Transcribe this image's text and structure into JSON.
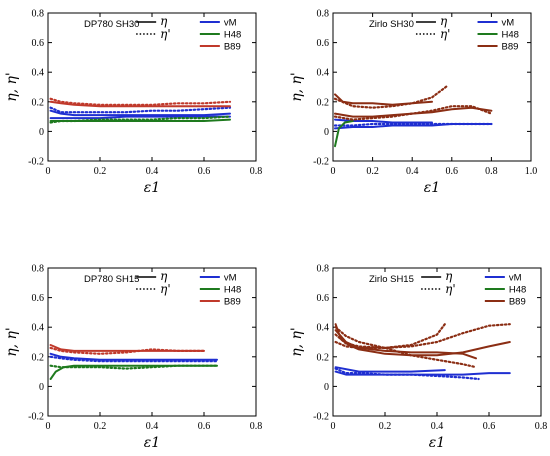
{
  "chart_data": [
    {
      "type": "line",
      "title": "DP780 SH30",
      "xlabel": "ε1",
      "ylabel": "η, η'",
      "xlim": [
        0,
        0.8
      ],
      "ylim": [
        -0.2,
        0.8
      ],
      "xticks": [
        "0",
        "0.2",
        "0.4",
        "0.6",
        "0.8"
      ],
      "yticks": [
        "-0.2",
        "0",
        "0.2",
        "0.4",
        "0.6",
        "0.8"
      ],
      "legend": {
        "eta": "η",
        "eta_prime": "η'",
        "models": [
          "vM",
          "H48",
          "B89"
        ]
      },
      "series": [
        {
          "model": "vM",
          "kind": "η",
          "x": [
            0.01,
            0.05,
            0.1,
            0.2,
            0.3,
            0.4,
            0.5,
            0.6,
            0.7
          ],
          "y": [
            0.14,
            0.12,
            0.11,
            0.11,
            0.11,
            0.11,
            0.11,
            0.11,
            0.12
          ]
        },
        {
          "model": "vM",
          "kind": "η'",
          "x": [
            0.01,
            0.05,
            0.1,
            0.2,
            0.3,
            0.4,
            0.5,
            0.6,
            0.7
          ],
          "y": [
            0.16,
            0.13,
            0.13,
            0.13,
            0.13,
            0.14,
            0.14,
            0.15,
            0.16
          ]
        },
        {
          "model": "vM",
          "kind": "η",
          "x": [
            0.01,
            0.05,
            0.1,
            0.2,
            0.3,
            0.4,
            0.5,
            0.6,
            0.7
          ],
          "y": [
            0.09,
            0.09,
            0.09,
            0.09,
            0.1,
            0.1,
            0.1,
            0.1,
            0.1
          ]
        },
        {
          "model": "H48",
          "kind": "η",
          "x": [
            0.01,
            0.05,
            0.1,
            0.2,
            0.3,
            0.4,
            0.5,
            0.6,
            0.7
          ],
          "y": [
            0.07,
            0.07,
            0.07,
            0.07,
            0.07,
            0.07,
            0.07,
            0.07,
            0.08
          ]
        },
        {
          "model": "H48",
          "kind": "η'",
          "x": [
            0.01,
            0.05,
            0.1,
            0.2,
            0.3,
            0.4,
            0.5,
            0.6,
            0.7
          ],
          "y": [
            0.06,
            0.07,
            0.07,
            0.08,
            0.08,
            0.08,
            0.09,
            0.09,
            0.1
          ]
        },
        {
          "model": "B89",
          "kind": "η",
          "x": [
            0.01,
            0.05,
            0.1,
            0.2,
            0.3,
            0.4,
            0.5,
            0.6,
            0.7
          ],
          "y": [
            0.2,
            0.19,
            0.18,
            0.17,
            0.17,
            0.17,
            0.17,
            0.17,
            0.17
          ]
        },
        {
          "model": "B89",
          "kind": "η'",
          "x": [
            0.01,
            0.05,
            0.1,
            0.2,
            0.3,
            0.4,
            0.5,
            0.6,
            0.7
          ],
          "y": [
            0.22,
            0.2,
            0.19,
            0.18,
            0.18,
            0.18,
            0.19,
            0.19,
            0.2
          ]
        }
      ]
    },
    {
      "type": "line",
      "title": "Zirlo SH30",
      "xlabel": "ε1",
      "ylabel": "η, η'",
      "xlim": [
        0,
        1.0
      ],
      "ylim": [
        -0.2,
        0.8
      ],
      "xticks": [
        "0",
        "0.2",
        "0.4",
        "0.6",
        "0.8",
        "1.0"
      ],
      "yticks": [
        "-0.2",
        "0",
        "0.2",
        "0.4",
        "0.6",
        "0.8"
      ],
      "legend": {
        "eta": "η",
        "eta_prime": "η'",
        "models": [
          "vM",
          "H48",
          "B89"
        ]
      },
      "series": [
        {
          "model": "vM",
          "kind": "η",
          "x": [
            0.01,
            0.1,
            0.2,
            0.3,
            0.4,
            0.5,
            0.6,
            0.7,
            0.8
          ],
          "y": [
            0.02,
            0.03,
            0.03,
            0.04,
            0.04,
            0.04,
            0.05,
            0.05,
            0.05
          ]
        },
        {
          "model": "vM",
          "kind": "η'",
          "x": [
            0.01,
            0.1,
            0.2,
            0.3,
            0.4,
            0.5,
            0.6,
            0.7,
            0.8
          ],
          "y": [
            0.04,
            0.04,
            0.05,
            0.05,
            0.05,
            0.05,
            0.05,
            0.05,
            0.05
          ]
        },
        {
          "model": "vM",
          "kind": "η",
          "x": [
            0.01,
            0.1,
            0.2,
            0.3,
            0.4,
            0.5
          ],
          "y": [
            0.08,
            0.07,
            0.07,
            0.06,
            0.06,
            0.06
          ]
        },
        {
          "model": "H48",
          "kind": "η",
          "x": [
            0.01,
            0.03,
            0.06,
            0.1
          ],
          "y": [
            -0.1,
            0.02,
            0.06,
            0.07
          ]
        },
        {
          "model": "B89",
          "kind": "η",
          "x": [
            0.01,
            0.05,
            0.1,
            0.2,
            0.3,
            0.4,
            0.5
          ],
          "y": [
            0.25,
            0.2,
            0.19,
            0.19,
            0.18,
            0.19,
            0.2
          ]
        },
        {
          "model": "B89",
          "kind": "η'",
          "x": [
            0.01,
            0.1,
            0.2,
            0.3,
            0.4,
            0.5,
            0.58
          ],
          "y": [
            0.22,
            0.17,
            0.16,
            0.17,
            0.19,
            0.23,
            0.31
          ]
        },
        {
          "model": "B89",
          "kind": "η",
          "x": [
            0.01,
            0.1,
            0.2,
            0.3,
            0.4,
            0.5,
            0.6,
            0.7,
            0.8
          ],
          "y": [
            0.12,
            0.1,
            0.1,
            0.11,
            0.12,
            0.13,
            0.15,
            0.16,
            0.14
          ]
        },
        {
          "model": "B89",
          "kind": "η'",
          "x": [
            0.01,
            0.1,
            0.2,
            0.3,
            0.4,
            0.5,
            0.6,
            0.7,
            0.8
          ],
          "y": [
            0.1,
            0.08,
            0.09,
            0.1,
            0.12,
            0.14,
            0.17,
            0.17,
            0.12
          ]
        }
      ]
    },
    {
      "type": "line",
      "title": "DP780 SH15",
      "xlabel": "ε1",
      "ylabel": "η, η'",
      "xlim": [
        0,
        0.8
      ],
      "ylim": [
        -0.2,
        0.8
      ],
      "xticks": [
        "0",
        "0.2",
        "0.4",
        "0.6",
        "0.8"
      ],
      "yticks": [
        "-0.2",
        "0",
        "0.2",
        "0.4",
        "0.6",
        "0.8"
      ],
      "legend": {
        "eta": "η",
        "eta_prime": "η'",
        "models": [
          "vM",
          "H48",
          "B89"
        ]
      },
      "series": [
        {
          "model": "vM",
          "kind": "η",
          "x": [
            0.01,
            0.05,
            0.1,
            0.2,
            0.3,
            0.4,
            0.5,
            0.6,
            0.65
          ],
          "y": [
            0.22,
            0.2,
            0.19,
            0.18,
            0.18,
            0.18,
            0.18,
            0.18,
            0.18
          ]
        },
        {
          "model": "vM",
          "kind": "η'",
          "x": [
            0.01,
            0.05,
            0.1,
            0.2,
            0.3,
            0.4,
            0.5,
            0.6,
            0.65
          ],
          "y": [
            0.2,
            0.19,
            0.18,
            0.17,
            0.17,
            0.17,
            0.17,
            0.17,
            0.17
          ]
        },
        {
          "model": "H48",
          "kind": "η",
          "x": [
            0.01,
            0.03,
            0.06,
            0.1,
            0.2,
            0.3,
            0.4,
            0.5,
            0.6,
            0.65
          ],
          "y": [
            0.05,
            0.1,
            0.13,
            0.14,
            0.14,
            0.14,
            0.14,
            0.14,
            0.14,
            0.14
          ]
        },
        {
          "model": "H48",
          "kind": "η'",
          "x": [
            0.01,
            0.05,
            0.1,
            0.2,
            0.3,
            0.4,
            0.5,
            0.6,
            0.65
          ],
          "y": [
            0.14,
            0.13,
            0.13,
            0.13,
            0.12,
            0.13,
            0.14,
            0.14,
            0.14
          ]
        },
        {
          "model": "B89",
          "kind": "η",
          "x": [
            0.01,
            0.05,
            0.1,
            0.2,
            0.3,
            0.4,
            0.5,
            0.6
          ],
          "y": [
            0.28,
            0.25,
            0.24,
            0.24,
            0.24,
            0.24,
            0.24,
            0.24
          ]
        },
        {
          "model": "B89",
          "kind": "η'",
          "x": [
            0.01,
            0.05,
            0.1,
            0.2,
            0.3,
            0.4,
            0.5,
            0.6
          ],
          "y": [
            0.26,
            0.24,
            0.23,
            0.22,
            0.23,
            0.25,
            0.24,
            0.24
          ]
        }
      ]
    },
    {
      "type": "line",
      "title": "Zirlo SH15",
      "xlabel": "ε1",
      "ylabel": "η, η'",
      "xlim": [
        0,
        0.8
      ],
      "ylim": [
        -0.2,
        0.8
      ],
      "xticks": [
        "0",
        "0.2",
        "0.4",
        "0.6",
        "0.8"
      ],
      "yticks": [
        "-0.2",
        "0",
        "0.2",
        "0.4",
        "0.6",
        "0.8"
      ],
      "legend": {
        "eta": "η",
        "eta_prime": "η'",
        "models": [
          "vM",
          "H48",
          "B89"
        ]
      },
      "series": [
        {
          "model": "vM",
          "kind": "η",
          "x": [
            0.01,
            0.05,
            0.1,
            0.2,
            0.3,
            0.4,
            0.5,
            0.6,
            0.68
          ],
          "y": [
            0.1,
            0.08,
            0.08,
            0.08,
            0.08,
            0.08,
            0.08,
            0.09,
            0.09
          ]
        },
        {
          "model": "vM",
          "kind": "η'",
          "x": [
            0.01,
            0.05,
            0.1,
            0.2,
            0.3,
            0.4,
            0.5,
            0.56
          ],
          "y": [
            0.12,
            0.09,
            0.09,
            0.08,
            0.08,
            0.07,
            0.06,
            0.05
          ]
        },
        {
          "model": "vM",
          "kind": "η",
          "x": [
            0.01,
            0.1,
            0.2,
            0.3,
            0.43
          ],
          "y": [
            0.13,
            0.1,
            0.1,
            0.1,
            0.11
          ]
        },
        {
          "model": "B89",
          "kind": "η",
          "x": [
            0.01,
            0.03,
            0.06,
            0.1,
            0.2,
            0.3,
            0.4,
            0.5,
            0.6,
            0.68
          ],
          "y": [
            0.42,
            0.32,
            0.28,
            0.25,
            0.22,
            0.21,
            0.21,
            0.23,
            0.27,
            0.3
          ]
        },
        {
          "model": "B89",
          "kind": "η'",
          "x": [
            0.01,
            0.05,
            0.1,
            0.2,
            0.3,
            0.4,
            0.5,
            0.6,
            0.68
          ],
          "y": [
            0.35,
            0.29,
            0.27,
            0.26,
            0.27,
            0.3,
            0.36,
            0.41,
            0.42
          ]
        },
        {
          "model": "B89",
          "kind": "η",
          "x": [
            0.01,
            0.05,
            0.1,
            0.2,
            0.3,
            0.4,
            0.5,
            0.55
          ],
          "y": [
            0.38,
            0.3,
            0.26,
            0.24,
            0.23,
            0.23,
            0.22,
            0.19
          ]
        },
        {
          "model": "B89",
          "kind": "η'",
          "x": [
            0.01,
            0.05,
            0.1,
            0.2,
            0.3,
            0.4,
            0.43
          ],
          "y": [
            0.3,
            0.27,
            0.26,
            0.26,
            0.28,
            0.35,
            0.42
          ]
        },
        {
          "model": "B89",
          "kind": "η'",
          "x": [
            0.01,
            0.05,
            0.1,
            0.2,
            0.3,
            0.4,
            0.5,
            0.55
          ],
          "y": [
            0.4,
            0.34,
            0.3,
            0.26,
            0.21,
            0.18,
            0.15,
            0.13
          ]
        }
      ]
    }
  ],
  "colors": {
    "vM": "#1f2fd1",
    "H48": "#1e7a1e",
    "B89": "#c0392b",
    "B89_dark": "#8b2e14",
    "axis": "#000000",
    "bg": "#ffffff"
  }
}
